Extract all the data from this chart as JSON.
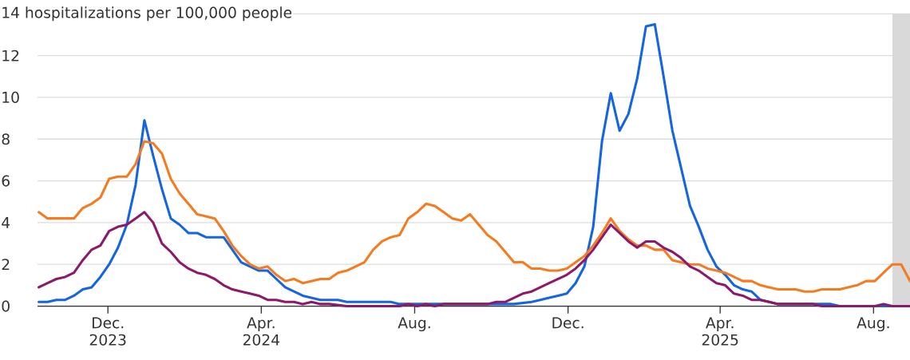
{
  "chart_data": {
    "type": "line",
    "xlim": [
      "2023-10-06",
      "2025-08-30"
    ],
    "xticks": [
      {
        "value": "2023-12-01",
        "label": "Dec. 2023"
      },
      {
        "value": "2024-04-01",
        "label": "Apr. 2024"
      },
      {
        "value": "2024-08-01",
        "label": "Aug."
      },
      {
        "value": "2024-12-01",
        "label": "Dec."
      },
      {
        "value": "2025-04-01",
        "label": "Apr. 2025"
      },
      {
        "value": "2025-08-01",
        "label": "Aug."
      }
    ],
    "ylim": [
      0,
      14
    ],
    "yticks": [
      0,
      2,
      4,
      6,
      8,
      10,
      12,
      {
        "value": 14,
        "label": "14 hospitalizations per 100,000 people"
      }
    ],
    "grid": "y",
    "bands": [
      {
        "axis": "x",
        "from": "2025-08-16",
        "to": "2025-08-30",
        "color": "#d9d9d9"
      }
    ],
    "series": [
      {
        "color": "#1565e0",
        "x": [
          "2023-10-07",
          "2023-10-14",
          "2023-10-21",
          "2023-10-28",
          "2023-11-04",
          "2023-11-11",
          "2023-11-18",
          "2023-11-25",
          "2023-12-02",
          "2023-12-09",
          "2023-12-16",
          "2023-12-23",
          "2023-12-30",
          "2024-01-06",
          "2024-01-13",
          "2024-01-20",
          "2024-01-27",
          "2024-02-03",
          "2024-02-10",
          "2024-02-17",
          "2024-03-02",
          "2024-03-09",
          "2024-03-16",
          "2024-03-23",
          "2024-03-30",
          "2024-04-06",
          "2024-04-13",
          "2024-04-20",
          "2024-04-27",
          "2024-05-04",
          "2024-05-11",
          "2024-05-18",
          "2024-06-01",
          "2024-06-08",
          "2024-07-13",
          "2024-07-20",
          "2024-10-19",
          "2024-11-02",
          "2024-11-09",
          "2024-11-16",
          "2024-11-23",
          "2024-11-30",
          "2024-12-07",
          "2024-12-14",
          "2024-12-21",
          "2024-12-28",
          "2025-01-04",
          "2025-01-11",
          "2025-01-18",
          "2025-01-25",
          "2025-02-01",
          "2025-02-08",
          "2025-02-15",
          "2025-02-22",
          "2025-03-01",
          "2025-03-08",
          "2025-03-15",
          "2025-03-22",
          "2025-03-29",
          "2025-04-05",
          "2025-04-12",
          "2025-04-19",
          "2025-04-26",
          "2025-05-03",
          "2025-05-10",
          "2025-05-17",
          "2025-06-28",
          "2025-07-05",
          "2025-08-30"
        ],
        "values": [
          0.2,
          0.2,
          0.3,
          0.3,
          0.5,
          0.8,
          0.9,
          1.4,
          2.0,
          2.8,
          3.9,
          5.8,
          8.9,
          7.2,
          5.6,
          4.2,
          3.9,
          3.5,
          3.5,
          3.3,
          3.3,
          2.7,
          2.1,
          1.9,
          1.7,
          1.7,
          1.3,
          0.9,
          0.7,
          0.5,
          0.4,
          0.3,
          0.3,
          0.2,
          0.2,
          0.1,
          0.1,
          0.2,
          0.3,
          0.4,
          0.5,
          0.6,
          1.1,
          1.9,
          3.8,
          7.9,
          10.2,
          8.4,
          9.2,
          10.9,
          13.4,
          13.5,
          11.0,
          8.4,
          6.6,
          4.8,
          3.8,
          2.7,
          1.9,
          1.5,
          1.0,
          0.8,
          0.7,
          0.3,
          0.2,
          0.1,
          0.1,
          0.0,
          0.0
        ]
      },
      {
        "color": "#f47b20",
        "x": [
          "2023-10-07",
          "2023-10-14",
          "2023-11-04",
          "2023-11-11",
          "2023-11-18",
          "2023-11-25",
          "2023-12-02",
          "2023-12-09",
          "2023-12-16",
          "2023-12-23",
          "2023-12-30",
          "2024-01-06",
          "2024-01-13",
          "2024-01-20",
          "2024-01-27",
          "2024-02-03",
          "2024-02-10",
          "2024-02-24",
          "2024-03-02",
          "2024-03-09",
          "2024-03-16",
          "2024-03-23",
          "2024-03-30",
          "2024-04-06",
          "2024-04-13",
          "2024-04-20",
          "2024-04-27",
          "2024-05-04",
          "2024-05-18",
          "2024-05-25",
          "2024-06-01",
          "2024-06-08",
          "2024-06-15",
          "2024-06-22",
          "2024-06-29",
          "2024-07-06",
          "2024-07-13",
          "2024-07-20",
          "2024-07-27",
          "2024-08-03",
          "2024-08-10",
          "2024-08-17",
          "2024-08-24",
          "2024-08-31",
          "2024-09-07",
          "2024-09-14",
          "2024-09-21",
          "2024-09-28",
          "2024-10-05",
          "2024-10-12",
          "2024-10-19",
          "2024-10-26",
          "2024-11-02",
          "2024-11-09",
          "2024-11-16",
          "2024-11-23",
          "2024-11-30",
          "2024-12-07",
          "2024-12-14",
          "2024-12-21",
          "2024-12-28",
          "2025-01-04",
          "2025-01-11",
          "2025-01-18",
          "2025-01-25",
          "2025-02-01",
          "2025-02-08",
          "2025-02-15",
          "2025-02-22",
          "2025-03-01",
          "2025-03-08",
          "2025-03-15",
          "2025-03-22",
          "2025-03-29",
          "2025-04-05",
          "2025-04-12",
          "2025-04-19",
          "2025-04-26",
          "2025-05-03",
          "2025-05-10",
          "2025-05-17",
          "2025-05-31",
          "2025-06-07",
          "2025-06-14",
          "2025-06-21",
          "2025-07-05",
          "2025-07-19",
          "2025-07-26",
          "2025-08-02",
          "2025-08-09",
          "2025-08-16",
          "2025-08-23",
          "2025-08-30"
        ],
        "values": [
          4.5,
          4.2,
          4.2,
          4.7,
          4.9,
          5.2,
          6.1,
          6.2,
          6.2,
          6.8,
          7.9,
          7.8,
          7.3,
          6.1,
          5.4,
          4.9,
          4.4,
          4.2,
          3.6,
          2.9,
          2.4,
          2.0,
          1.8,
          1.9,
          1.5,
          1.2,
          1.3,
          1.1,
          1.3,
          1.3,
          1.6,
          1.7,
          1.9,
          2.1,
          2.7,
          3.1,
          3.3,
          3.4,
          4.2,
          4.5,
          4.9,
          4.8,
          4.5,
          4.2,
          4.1,
          4.4,
          3.9,
          3.4,
          3.1,
          2.6,
          2.1,
          2.1,
          1.8,
          1.8,
          1.7,
          1.7,
          1.8,
          2.1,
          2.4,
          2.9,
          3.5,
          4.2,
          3.6,
          3.2,
          2.9,
          2.9,
          2.7,
          2.7,
          2.2,
          2.1,
          2.0,
          2.0,
          1.8,
          1.7,
          1.6,
          1.4,
          1.2,
          1.2,
          1.0,
          0.9,
          0.8,
          0.8,
          0.7,
          0.7,
          0.8,
          0.8,
          1.0,
          1.2,
          1.2,
          1.6,
          2.0,
          2.0,
          1.2
        ]
      },
      {
        "color": "#8b1a6b",
        "x": [
          "2023-10-07",
          "2023-10-14",
          "2023-10-21",
          "2023-10-28",
          "2023-11-04",
          "2023-11-11",
          "2023-11-18",
          "2023-11-25",
          "2023-12-02",
          "2023-12-09",
          "2023-12-16",
          "2023-12-23",
          "2023-12-30",
          "2024-01-06",
          "2024-01-13",
          "2024-01-20",
          "2024-01-27",
          "2024-02-03",
          "2024-02-10",
          "2024-02-17",
          "2024-02-24",
          "2024-03-02",
          "2024-03-09",
          "2024-03-16",
          "2024-03-23",
          "2024-03-30",
          "2024-04-06",
          "2024-04-13",
          "2024-04-20",
          "2024-04-27",
          "2024-05-04",
          "2024-05-11",
          "2024-05-18",
          "2024-05-25",
          "2024-06-08",
          "2024-07-20",
          "2024-07-27",
          "2024-08-03",
          "2024-08-10",
          "2024-08-17",
          "2024-08-24",
          "2024-09-28",
          "2024-10-05",
          "2024-10-12",
          "2024-10-19",
          "2024-10-26",
          "2024-11-02",
          "2024-11-09",
          "2024-11-16",
          "2024-11-23",
          "2024-11-30",
          "2024-12-07",
          "2024-12-14",
          "2024-12-21",
          "2024-12-28",
          "2025-01-04",
          "2025-01-11",
          "2025-01-18",
          "2025-01-25",
          "2025-02-01",
          "2025-02-08",
          "2025-02-15",
          "2025-02-22",
          "2025-03-01",
          "2025-03-08",
          "2025-03-15",
          "2025-03-22",
          "2025-03-29",
          "2025-04-05",
          "2025-04-12",
          "2025-04-19",
          "2025-04-26",
          "2025-05-03",
          "2025-05-10",
          "2025-05-17",
          "2025-06-14",
          "2025-06-21",
          "2025-08-02",
          "2025-08-09",
          "2025-08-16",
          "2025-08-30"
        ],
        "values": [
          0.9,
          1.1,
          1.3,
          1.4,
          1.6,
          2.2,
          2.7,
          2.9,
          3.6,
          3.8,
          3.9,
          4.2,
          4.5,
          4.0,
          3.0,
          2.6,
          2.1,
          1.8,
          1.6,
          1.5,
          1.3,
          1.0,
          0.8,
          0.7,
          0.6,
          0.5,
          0.3,
          0.3,
          0.2,
          0.2,
          0.1,
          0.2,
          0.1,
          0.1,
          0.0,
          0.0,
          0.1,
          0.0,
          0.1,
          0.0,
          0.1,
          0.1,
          0.2,
          0.2,
          0.4,
          0.6,
          0.7,
          0.9,
          1.1,
          1.3,
          1.5,
          1.8,
          2.2,
          2.7,
          3.3,
          3.9,
          3.5,
          3.1,
          2.8,
          3.1,
          3.1,
          2.8,
          2.6,
          2.3,
          1.9,
          1.7,
          1.4,
          1.1,
          1.0,
          0.6,
          0.5,
          0.3,
          0.3,
          0.2,
          0.1,
          0.1,
          0.0,
          0.0,
          0.1,
          0.0,
          0.0
        ]
      }
    ]
  }
}
